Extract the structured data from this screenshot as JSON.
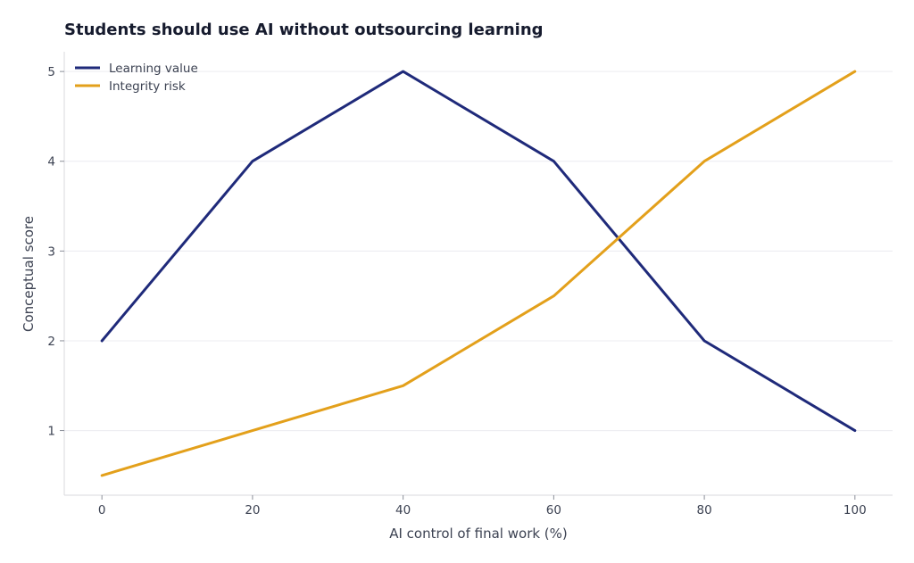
{
  "chart_data": {
    "type": "line",
    "title": "Students should use AI without outsourcing learning",
    "xlabel": "AI control of final work (%)",
    "ylabel": "Conceptual score",
    "x": [
      0,
      20,
      40,
      60,
      80,
      100
    ],
    "xlim": [
      -5,
      105
    ],
    "ylim": [
      0.28,
      5.22
    ],
    "xticks": [
      0,
      20,
      40,
      60,
      80,
      100
    ],
    "yticks": [
      1,
      2,
      3,
      4,
      5
    ],
    "grid": "horizontal",
    "legend": "top-left",
    "series": [
      {
        "name": "Learning value",
        "color": "#1f2a7a",
        "values": [
          2,
          4,
          5,
          4,
          2,
          1
        ]
      },
      {
        "name": "Integrity risk",
        "color": "#e3a01b",
        "values": [
          0.5,
          1,
          1.5,
          2.5,
          4,
          5
        ]
      }
    ]
  }
}
